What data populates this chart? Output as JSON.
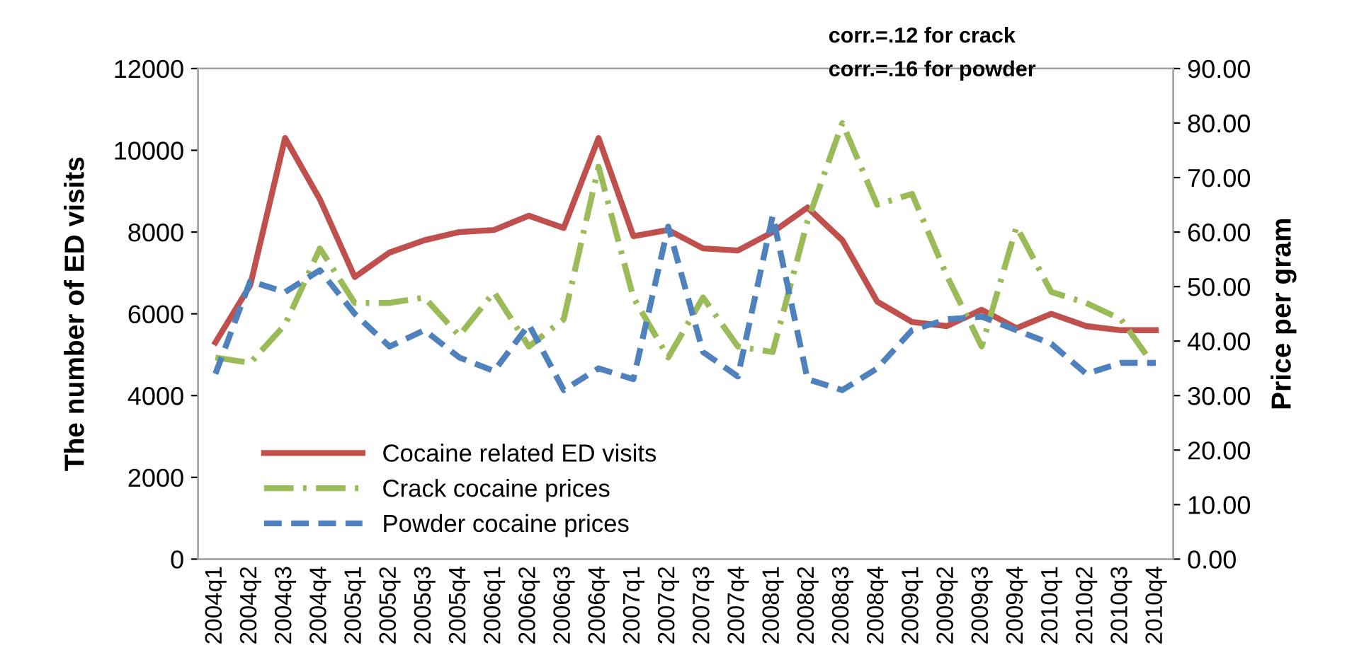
{
  "chart_data": {
    "type": "line",
    "ylabel": "The number of ED visits",
    "y2label": "Price per gram",
    "categories": [
      "2004q1",
      "2004q2",
      "2004q3",
      "2004q4",
      "2005q1",
      "2005q2",
      "2005q3",
      "2005q4",
      "2006q1",
      "2006q2",
      "2006q3",
      "2006q4",
      "2007q1",
      "2007q2",
      "2007q3",
      "2007q4",
      "2008q1",
      "2008q2",
      "2008q3",
      "2008q4",
      "2009q1",
      "2009q2",
      "2009q3",
      "2009q4",
      "2010q1",
      "2010q2",
      "2010q3",
      "2010q4"
    ],
    "series": [
      {
        "name": "Cocaine related ED visits",
        "color": "#c0504d",
        "line_style": "solid",
        "values": [
          5300,
          6700,
          10300,
          8800,
          6900,
          7500,
          7800,
          8000,
          8050,
          8400,
          8100,
          10300,
          7900,
          8050,
          7600,
          7550,
          8000,
          8600,
          7800,
          6300,
          5800,
          5700,
          6100,
          5650,
          6000,
          5700,
          5600,
          5600
        ]
      },
      {
        "name": "Crack cocaine prices",
        "color": "#9bbb59",
        "line_style": "dashdot",
        "axis": "y2",
        "values": [
          37,
          36,
          43,
          57,
          47,
          47,
          48,
          41,
          49,
          39,
          44,
          72,
          48,
          37,
          48,
          39,
          38,
          62,
          80,
          65,
          67,
          52,
          39,
          61,
          49,
          47,
          44,
          35
        ]
      },
      {
        "name": "Powder cocaine prices",
        "color": "#4f81bd",
        "line_style": "dashed",
        "axis": "y2",
        "values": [
          34,
          51,
          49,
          53,
          45,
          39,
          42,
          37,
          34.5,
          43,
          31,
          35,
          33,
          61,
          38,
          33.5,
          63,
          33,
          31,
          35,
          42,
          44,
          44.5,
          42,
          39.5,
          34,
          36,
          36
        ]
      }
    ],
    "ylim": [
      0,
      12000
    ],
    "yticks": [
      0,
      2000,
      4000,
      6000,
      8000,
      10000,
      12000
    ],
    "y2lim": [
      0,
      90
    ],
    "y2ticks": [
      {
        "value": 0,
        "label": "0.00"
      },
      {
        "value": 10,
        "label": "10.00"
      },
      {
        "value": 20,
        "label": "20.00"
      },
      {
        "value": 30,
        "label": "30.00"
      },
      {
        "value": 40,
        "label": "40.00"
      },
      {
        "value": 50,
        "label": "50.00"
      },
      {
        "value": 60,
        "label": "60.00"
      },
      {
        "value": 70,
        "label": "70.00"
      },
      {
        "value": 80,
        "label": "80.00"
      },
      {
        "value": 90,
        "label": "90.00"
      }
    ],
    "annotations": [
      "corr.=.12 for crack",
      "corr.=.16 for powder"
    ],
    "legend": "bottom left",
    "grid": false
  }
}
